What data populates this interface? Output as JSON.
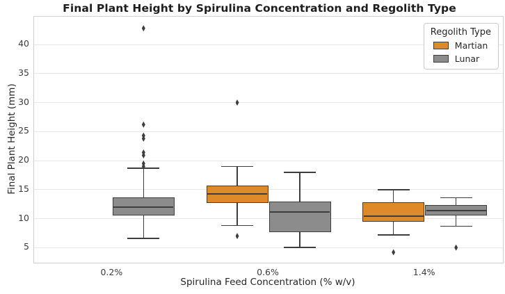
{
  "chart_data": {
    "type": "boxplot",
    "title": "Final Plant Height by Spirulina Concentration and Regolith Type",
    "xlabel": "Spirulina Feed Concentration (% w/v)",
    "ylabel": "Final Plant Height (mm)",
    "categories": [
      "0.2%",
      "0.6%",
      "1.4%"
    ],
    "y_ticks": [
      5,
      10,
      15,
      20,
      25,
      30,
      35,
      40
    ],
    "ylim": [
      2.4,
      44.8
    ],
    "grid": "horizontal",
    "legend": {
      "title": "Regolith Type",
      "position": "top-right"
    },
    "colors": {
      "edge": "#3d3d3d",
      "martian": "#df8a28",
      "lunar": "#8c8c8c"
    },
    "series": [
      {
        "name": "Martian",
        "fill": "#df8a28",
        "boxes": [
          null,
          {
            "low": 8.8,
            "q1": 12.7,
            "median": 14.2,
            "q3": 15.7,
            "high": 19.0,
            "outliers": [
              30.0,
              7.0
            ]
          },
          {
            "low": 7.2,
            "q1": 9.5,
            "median": 10.4,
            "q3": 12.8,
            "high": 15.0,
            "outliers": [
              4.2
            ]
          }
        ]
      },
      {
        "name": "Lunar",
        "fill": "#8c8c8c",
        "boxes": [
          {
            "low": 6.6,
            "q1": 10.5,
            "median": 12.0,
            "q3": 13.7,
            "high": 18.7,
            "outliers": [
              42.8,
              26.2,
              24.3,
              23.8,
              21.4,
              20.9,
              19.5,
              19.0
            ]
          },
          {
            "low": 5.0,
            "q1": 7.7,
            "median": 11.2,
            "q3": 13.0,
            "high": 18.0,
            "outliers": []
          },
          {
            "low": 8.7,
            "q1": 10.5,
            "median": 11.4,
            "q3": 12.4,
            "high": 13.6,
            "outliers": [
              5.0
            ]
          }
        ]
      }
    ]
  }
}
